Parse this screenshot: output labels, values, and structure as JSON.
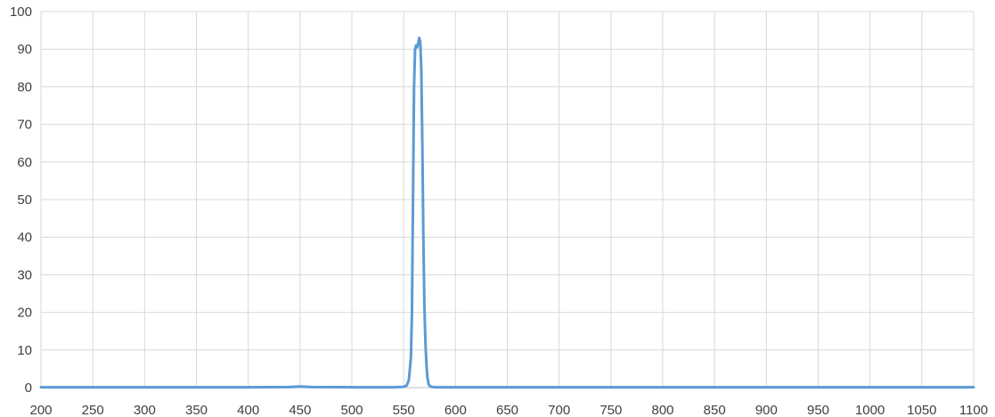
{
  "chart_data": {
    "type": "line",
    "title": "",
    "xlabel": "",
    "ylabel": "",
    "xlim": [
      200,
      1100
    ],
    "ylim": [
      0,
      100
    ],
    "x_ticks": [
      "200",
      "250",
      "300",
      "350",
      "400",
      "450",
      "500",
      "550",
      "600",
      "650",
      "700",
      "750",
      "800",
      "850",
      "900",
      "950",
      "1000",
      "1050",
      "1100"
    ],
    "y_ticks": [
      "0",
      "10",
      "20",
      "30",
      "40",
      "50",
      "60",
      "70",
      "80",
      "90",
      "100"
    ],
    "grid": true,
    "legend": "none",
    "colors": {
      "series": "#5b9bd5",
      "grid": "#d9d9d9",
      "text": "#404040"
    },
    "series": [
      {
        "x": [
          200,
          300,
          400,
          440,
          450,
          460,
          500,
          540,
          550,
          553,
          555,
          557,
          558,
          559,
          560,
          561,
          562,
          563,
          564,
          565,
          566,
          567,
          568,
          569,
          570,
          571,
          572,
          573,
          574,
          575,
          577,
          580,
          590,
          600,
          700,
          800,
          900,
          1000,
          1100
        ],
        "y": [
          0.1,
          0.1,
          0.1,
          0.15,
          0.3,
          0.15,
          0.1,
          0.1,
          0.2,
          0.6,
          2,
          8,
          20,
          50,
          80,
          90,
          91,
          90.5,
          91.5,
          93,
          92,
          85,
          65,
          40,
          22,
          12,
          6,
          2.5,
          1,
          0.5,
          0.2,
          0.1,
          0.1,
          0.1,
          0.1,
          0.1,
          0.1,
          0.1,
          0.1
        ]
      }
    ]
  }
}
